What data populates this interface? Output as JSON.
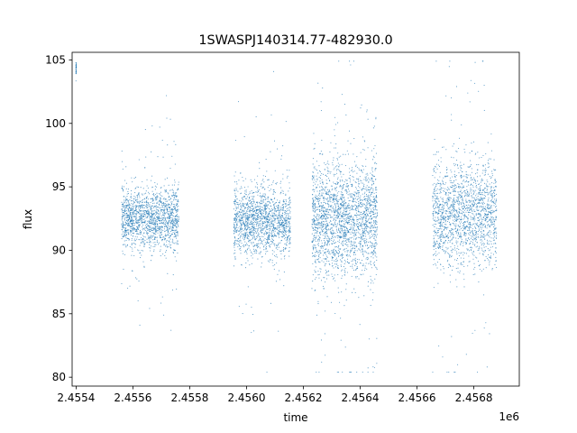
{
  "chart_data": {
    "type": "scatter",
    "title": "1SWASPJ140314.77-482930.0",
    "xlabel": "time",
    "ylabel": "flux",
    "x_offset_label": "1e6",
    "xlim": [
      2455386,
      2456960
    ],
    "ylim": [
      79.3,
      105.6
    ],
    "grid": false,
    "legend": "none",
    "marker_color": "#1f77b4",
    "x_ticks": [
      {
        "value": 2455400,
        "label": "2.4554"
      },
      {
        "value": 2455600,
        "label": "2.4556"
      },
      {
        "value": 2455800,
        "label": "2.4558"
      },
      {
        "value": 2456000,
        "label": "2.4560"
      },
      {
        "value": 2456200,
        "label": "2.4562"
      },
      {
        "value": 2456400,
        "label": "2.4564"
      },
      {
        "value": 2456600,
        "label": "2.4566"
      },
      {
        "value": 2456800,
        "label": "2.4568"
      }
    ],
    "y_ticks": [
      {
        "value": 80,
        "label": "80"
      },
      {
        "value": 85,
        "label": "85"
      },
      {
        "value": 90,
        "label": "90"
      },
      {
        "value": 95,
        "label": "95"
      },
      {
        "value": 100,
        "label": "100"
      },
      {
        "value": 105,
        "label": "105"
      }
    ],
    "seasons": [
      {
        "x_start": 2455399,
        "x_end": 2455401,
        "center": 104.4,
        "spread": 0.3,
        "density": 0.02
      },
      {
        "x_start": 2455560,
        "x_end": 2455762,
        "center": 92.5,
        "spread": 1.2,
        "density": 1.0
      },
      {
        "x_start": 2455955,
        "x_end": 2456155,
        "center": 92.3,
        "spread": 1.3,
        "density": 1.0
      },
      {
        "x_start": 2456230,
        "x_end": 2456460,
        "center": 92.5,
        "spread": 2.2,
        "density": 1.4
      },
      {
        "x_start": 2456655,
        "x_end": 2456880,
        "center": 92.8,
        "spread": 2.0,
        "density": 1.1
      }
    ]
  }
}
